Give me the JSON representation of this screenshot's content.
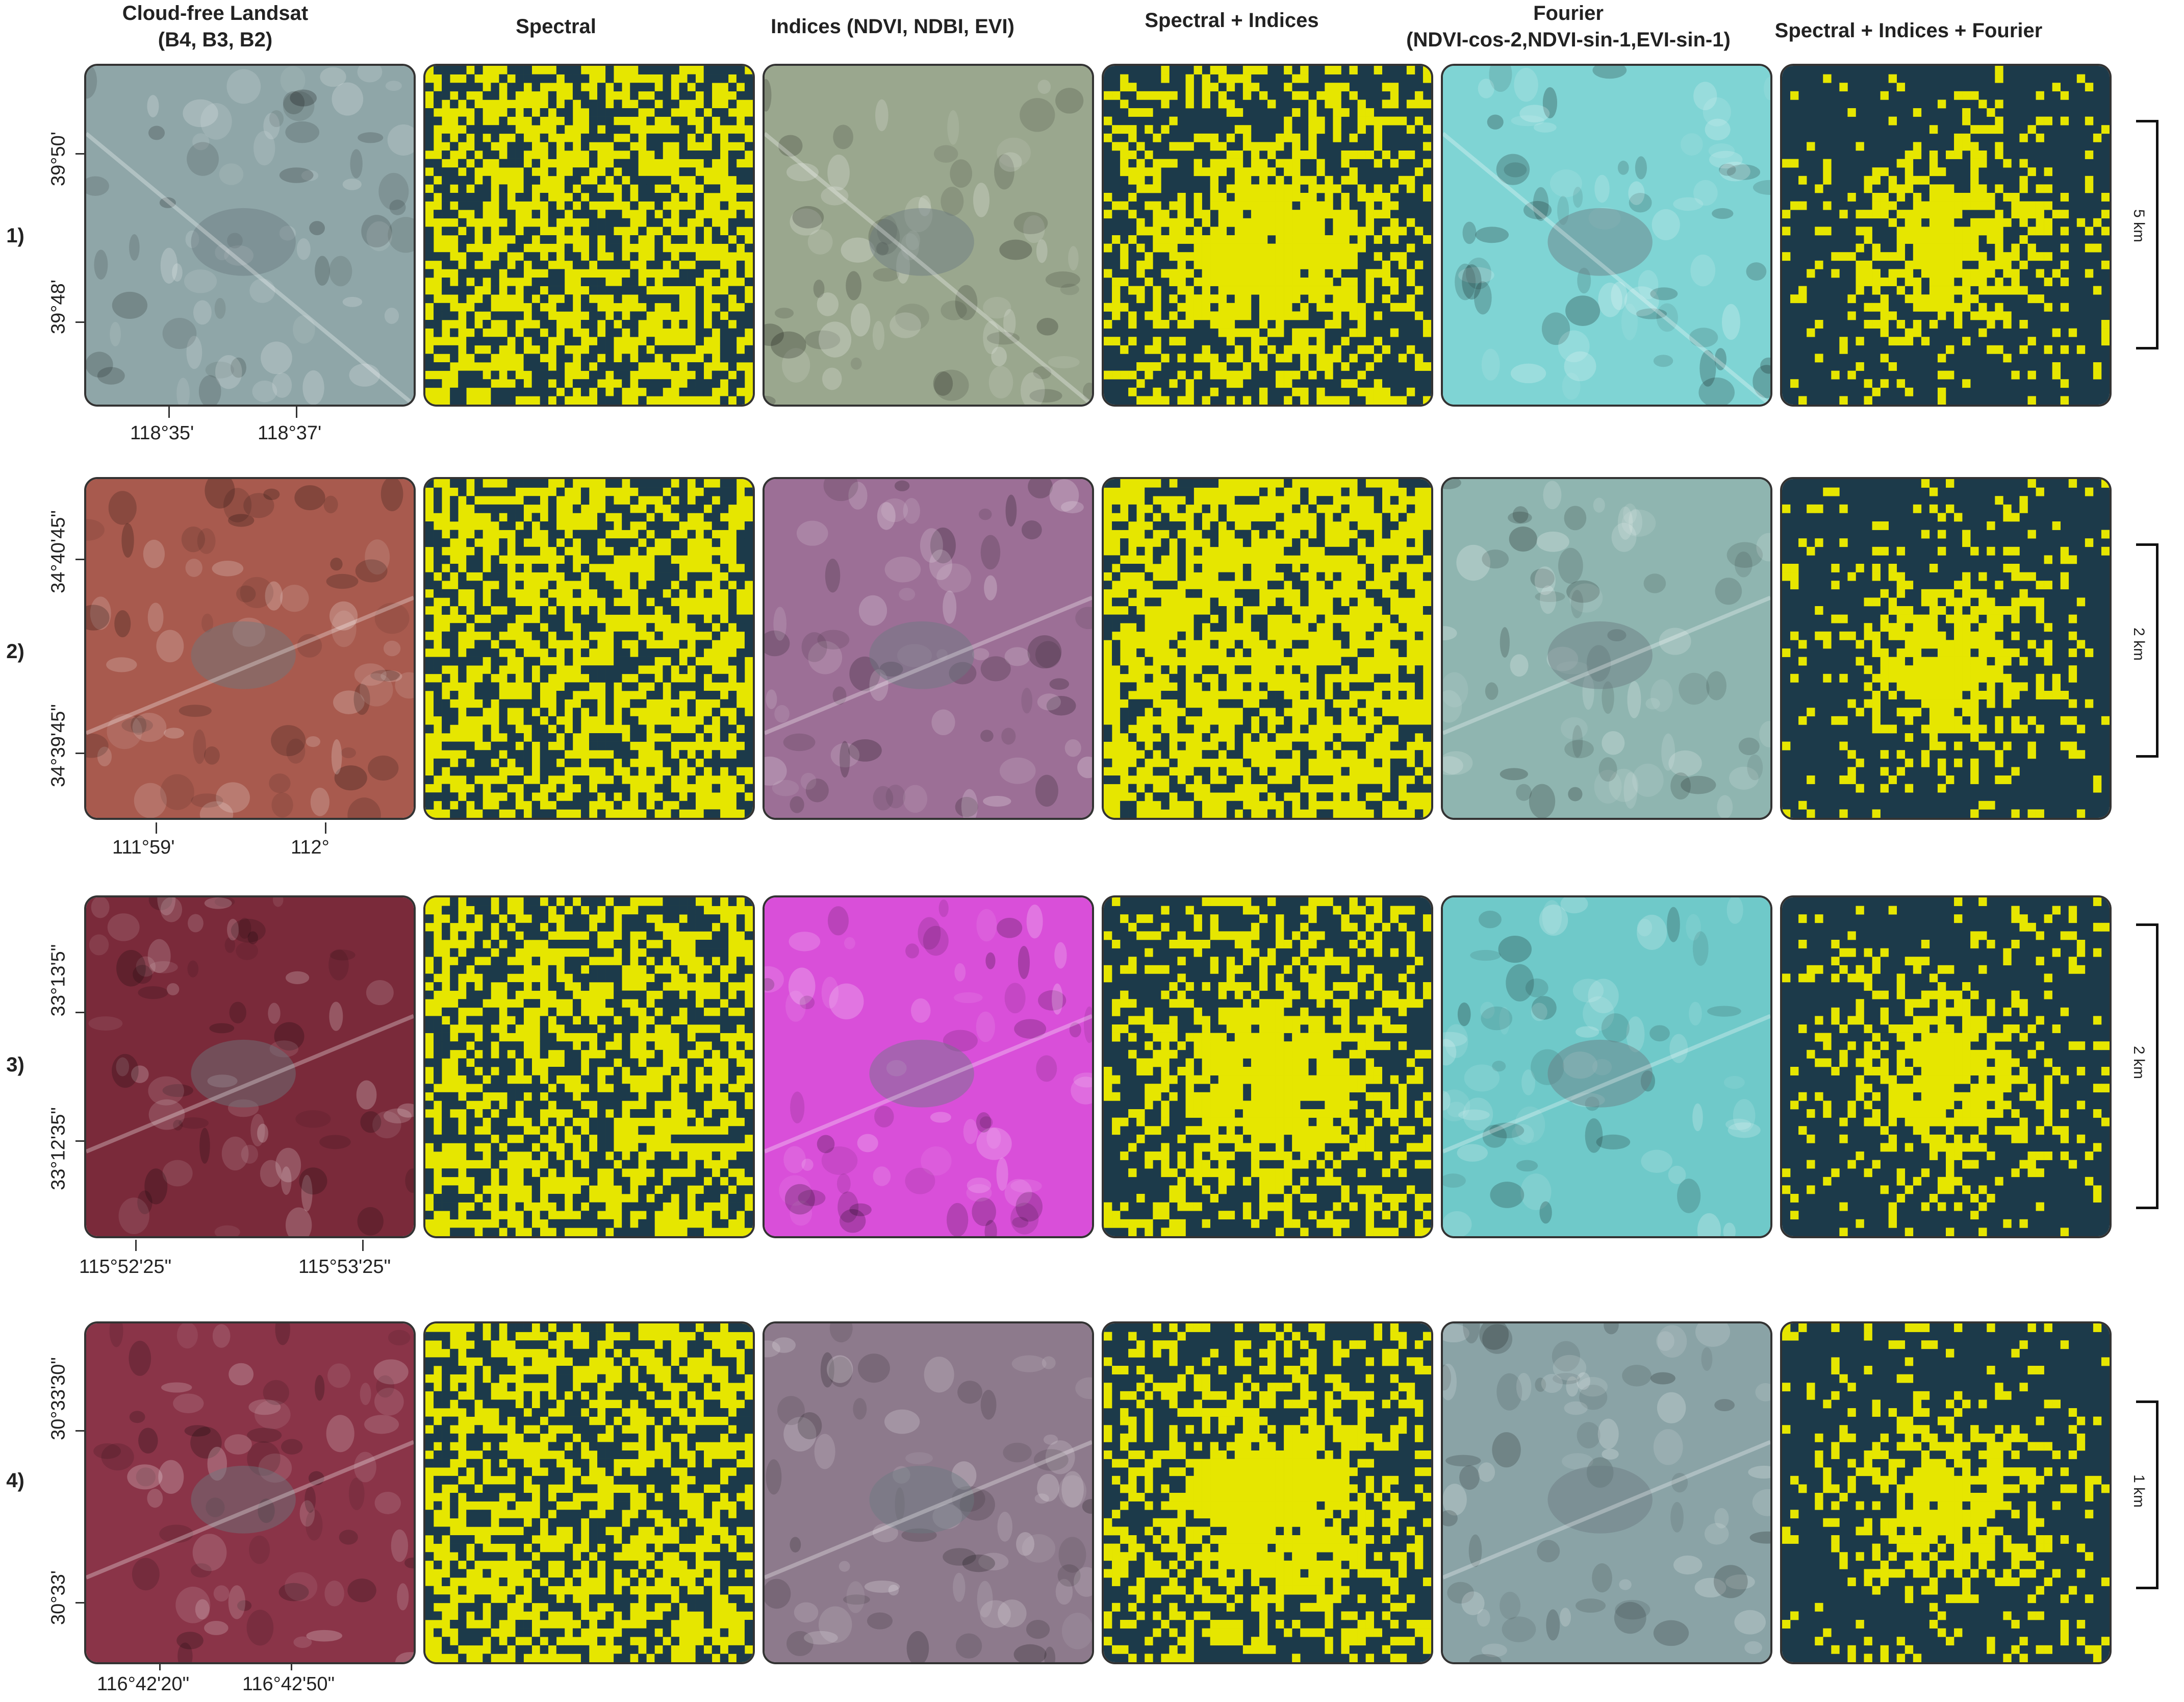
{
  "columns": [
    {
      "title_line1": "Cloud-free Landsat",
      "title_line2": "(B4, B3, B2)"
    },
    {
      "title_line1": "Spectral",
      "title_line2": ""
    },
    {
      "title_line1": "Indices (NDVI, NDBI, EVI)",
      "title_line2": ""
    },
    {
      "title_line1": "Spectral + Indices",
      "title_line2": ""
    },
    {
      "title_line1": "Fourier",
      "title_line2": "(NDVI-cos-2,NDVI-sin-1,EVI-sin-1)"
    },
    {
      "title_line1": "Spectral + Indices + Fourier",
      "title_line2": ""
    }
  ],
  "rows": [
    {
      "label": "1)",
      "lat1": "39°50'",
      "lat2": "39°48'",
      "lon1": "118°35'",
      "lon2": "118°37'",
      "scale": "5 km"
    },
    {
      "label": "2)",
      "lat1": "34°40'45\"",
      "lat2": "34°39'45\"",
      "lon1": "111°59'",
      "lon2": "112°",
      "scale": "2 km"
    },
    {
      "label": "3)",
      "lat1": "33°13'5\"",
      "lat2": "33°12'35\"",
      "lon1": "115°52'25\"",
      "lon2": "115°53'25\"",
      "scale": "2 km"
    },
    {
      "label": "4)",
      "lat1": "30°33'30\"",
      "lat2": "30°33'",
      "lon1": "116°42'20\"",
      "lon2": "116°42'50\"",
      "scale": "1 km"
    }
  ],
  "colors": {
    "map_dark": "#1c3a4a",
    "map_yellow": "#e6e600",
    "landsat_r1": "#8fa6a8",
    "landsat_r2": "#a85a4e",
    "landsat_r3": "#7a2a3a",
    "landsat_r4": "#8a3448",
    "indices_r1": "#9aa78e",
    "indices_r2": "#9c6f96",
    "indices_r3": "#d94fd9",
    "indices_r4": "#8d7a8c",
    "fourier_r1": "#7fd4d4",
    "fourier_r2": "#8fb5b0",
    "fourier_r3": "#6fc9c9",
    "fourier_r4": "#8aa3a6"
  }
}
